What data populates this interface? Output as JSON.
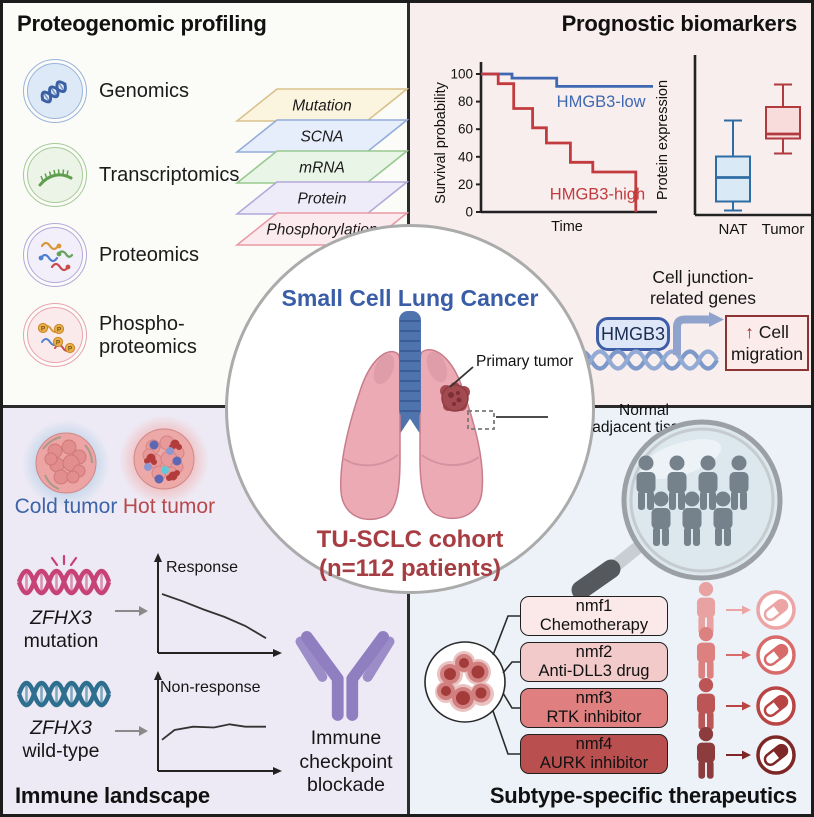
{
  "colors": {
    "blue_heading": "#3a5da8",
    "dark_red_heading": "#a63d42",
    "cold_blue": "#3c64a8",
    "hot_red": "#b9484c",
    "antibody_purple": "#8f7fc0",
    "quad_tl_bg": "#fbfcf8",
    "quad_tr_bg": "#f9eeee",
    "quad_bl_bg": "#edeaf5",
    "quad_br_bg": "#ecf2f8"
  },
  "top_left": {
    "title": "Proteogenomic profiling",
    "omics": [
      {
        "label_line1": "Genomics",
        "label_line2": "",
        "icon": "dna-icon",
        "ring": "#9ab4da",
        "fill": "#dde9f6"
      },
      {
        "label_line1": "Transcriptomics",
        "label_line2": "",
        "icon": "rna-icon",
        "ring": "#a5cb97",
        "fill": "#ebf4e6"
      },
      {
        "label_line1": "Proteomics",
        "label_line2": "",
        "icon": "protein-icon",
        "ring": "#b5a8dc",
        "fill": "#f2effa"
      },
      {
        "label_line1": "Phospho-",
        "label_line2": "proteomics",
        "icon": "phospho-icon",
        "ring": "#e8a3ad",
        "fill": "#fbeaec"
      }
    ],
    "layers": [
      {
        "label": "Mutation",
        "fill": "#fbf4df",
        "stroke": "#d9c18b"
      },
      {
        "label": "SCNA",
        "fill": "#e7eefb",
        "stroke": "#93acdb"
      },
      {
        "label": "mRNA",
        "fill": "#e9f5e6",
        "stroke": "#97c98f"
      },
      {
        "label": "Protein",
        "fill": "#efecf9",
        "stroke": "#b3a8da"
      },
      {
        "label": "Phosphorylation",
        "fill": "#fcebee",
        "stroke": "#e89aa6"
      }
    ]
  },
  "top_right": {
    "title": "Prognostic biomarkers",
    "mechanism": {
      "heading_line1": "Cell junction-",
      "heading_line2": "related genes",
      "gene": "HMGB3",
      "up_arrow": "↑",
      "outcome_line1": "Cell",
      "outcome_line2": "migration"
    }
  },
  "center": {
    "title": "Small Cell Lung Cancer",
    "primary_tumor_label": "Primary tumor",
    "nat_label_line1": "Normal",
    "nat_label_line2": "adjacent tissue",
    "cohort_line1": "TU-SCLC cohort",
    "cohort_line2": "(n=112 patients)"
  },
  "bottom_left": {
    "title": "Immune landscape",
    "cold_label": "Cold tumor",
    "hot_label": "Hot tumor",
    "mutation_gene": "ZFHX3",
    "mutation_state": "mutation",
    "wildtype_gene": "ZFHX3",
    "wildtype_state": "wild-type",
    "icb_line1": "Immune",
    "icb_line2": "checkpoint",
    "icb_line3": "blockade"
  },
  "bottom_right": {
    "title": "Subtype-specific therapeutics",
    "subtypes": [
      {
        "name": "nmf1",
        "therapy": "Chemotherapy",
        "fill": "#fbe9e9",
        "person": "#e9a2a2",
        "pill": "#eca4a4"
      },
      {
        "name": "nmf2",
        "therapy": "Anti-DLL3 drug",
        "fill": "#f2caca",
        "person": "#dd8080",
        "pill": "#d96a6a"
      },
      {
        "name": "nmf3",
        "therapy": "RTK inhibitor",
        "fill": "#e07f7f",
        "person": "#bc5656",
        "pill": "#b94444"
      },
      {
        "name": "nmf4",
        "therapy": "AURK inhibitor",
        "fill": "#b94f4f",
        "person": "#8c3c3c",
        "pill": "#7e2727"
      }
    ]
  },
  "chart_data": [
    {
      "type": "line",
      "subtype": "kaplan-meier",
      "title": "",
      "xlabel": "Time",
      "ylabel": "Survival probability",
      "ylim": [
        0,
        100
      ],
      "yticks": [
        100,
        80,
        60,
        40,
        20,
        0
      ],
      "series": [
        {
          "name": "HMGB3-low",
          "color": "#3e68b1",
          "label_at": [
            0.44,
            76
          ],
          "points": [
            [
              0,
              100
            ],
            [
              0.18,
              100
            ],
            [
              0.18,
              97
            ],
            [
              0.44,
              97
            ],
            [
              0.44,
              91
            ],
            [
              1,
              91
            ]
          ]
        },
        {
          "name": "HMGB3-high",
          "color": "#c23b3e",
          "label_at": [
            0.4,
            9
          ],
          "points": [
            [
              0,
              100
            ],
            [
              0.1,
              100
            ],
            [
              0.1,
              93
            ],
            [
              0.19,
              93
            ],
            [
              0.19,
              75
            ],
            [
              0.3,
              75
            ],
            [
              0.3,
              61
            ],
            [
              0.38,
              61
            ],
            [
              0.38,
              50
            ],
            [
              0.52,
              50
            ],
            [
              0.52,
              36
            ],
            [
              0.65,
              36
            ],
            [
              0.65,
              29
            ],
            [
              0.9,
              29
            ],
            [
              0.9,
              0
            ]
          ]
        }
      ]
    },
    {
      "type": "box",
      "title": "",
      "ylabel": "Protein expression",
      "categories": [
        "NAT",
        "Tumor"
      ],
      "boxes": [
        {
          "category": "NAT",
          "min": 3,
          "q1": 9,
          "median": 25,
          "q3": 39,
          "max": 63,
          "stroke": "#2e6da4",
          "fill": "#d9e9f6"
        },
        {
          "category": "Tumor",
          "min": 41,
          "q1": 51,
          "median": 54,
          "q3": 72,
          "max": 87,
          "stroke": "#b03a3e",
          "fill": "#f8dcdc"
        }
      ]
    },
    {
      "type": "line",
      "title": "Response",
      "points": [
        [
          0,
          72
        ],
        [
          0.2,
          63
        ],
        [
          0.4,
          53
        ],
        [
          0.6,
          44
        ],
        [
          0.8,
          33
        ],
        [
          1,
          18
        ]
      ]
    },
    {
      "type": "line",
      "title": "Non-response",
      "points": [
        [
          0,
          38
        ],
        [
          0.12,
          50
        ],
        [
          0.3,
          54
        ],
        [
          0.5,
          53
        ],
        [
          0.65,
          57
        ],
        [
          0.8,
          54
        ],
        [
          1,
          54
        ]
      ]
    }
  ]
}
